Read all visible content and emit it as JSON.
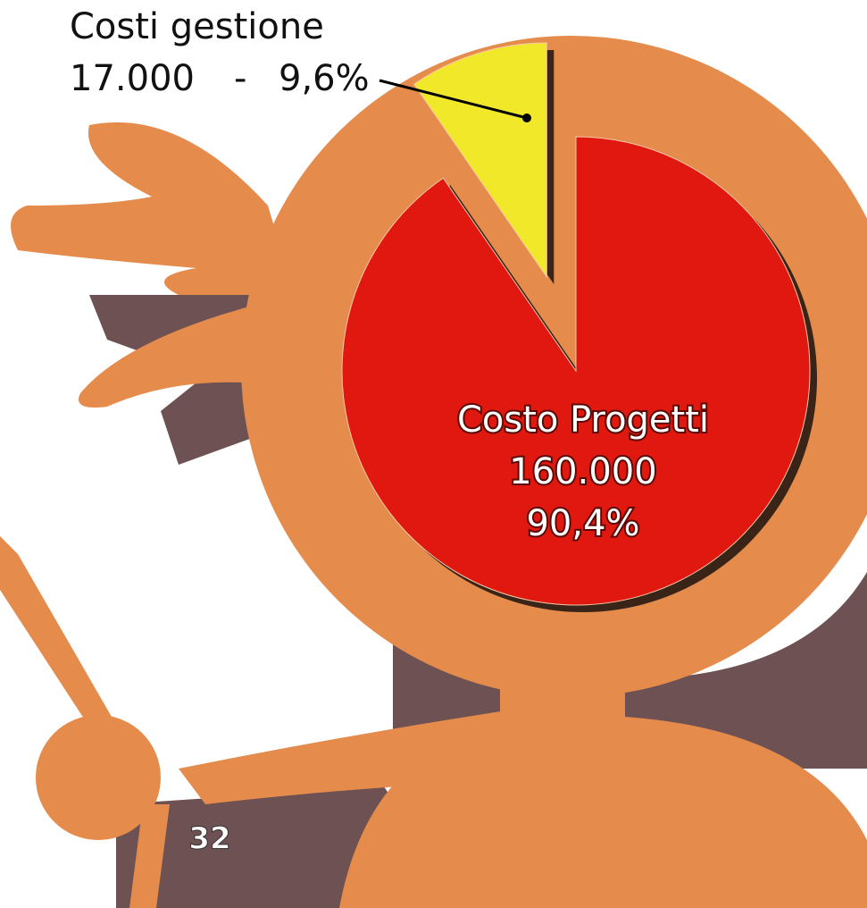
{
  "chart_data": {
    "type": "pie",
    "categories": [
      "Costi gestione",
      "Costo Progetti"
    ],
    "values": [
      17000,
      160000
    ],
    "value_labels": [
      "17.000",
      "160.000"
    ],
    "percents": [
      9.6,
      90.4
    ],
    "percent_labels": [
      "9,6%",
      "90,4%"
    ],
    "separator": "-",
    "colors": [
      "#f2e82a",
      "#e0180f"
    ],
    "explode": [
      true,
      false
    ]
  },
  "page": "32"
}
